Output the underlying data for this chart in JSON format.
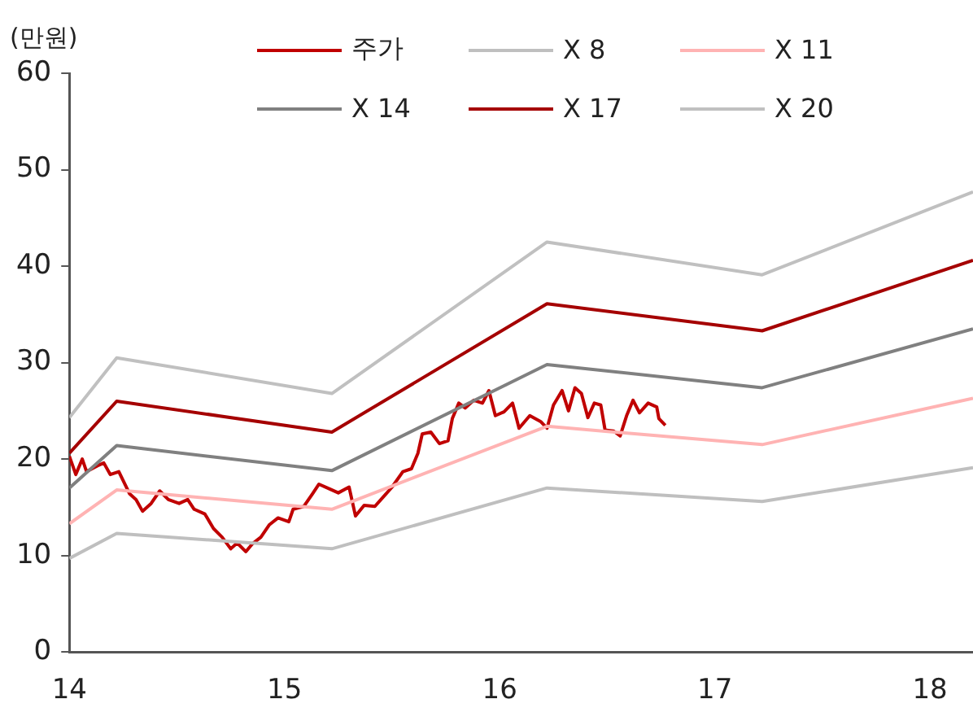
{
  "chart_data": {
    "type": "line",
    "ylabel": "(만원)",
    "xlim": [
      14,
      18.2
    ],
    "xticks": [
      14,
      15,
      16,
      17,
      18
    ],
    "ylim": [
      0,
      60
    ],
    "yticks": [
      0,
      10,
      20,
      30,
      40,
      50,
      60
    ],
    "grid": false,
    "legend": "top",
    "marker": "none",
    "line_style": "solid",
    "series": [
      {
        "name": "주가",
        "color": "#c00000",
        "x": [
          14.0,
          14.03,
          14.06,
          14.08,
          14.13,
          14.16,
          14.19,
          14.23,
          14.28,
          14.31,
          14.34,
          14.38,
          14.42,
          14.46,
          14.51,
          14.55,
          14.58,
          14.63,
          14.67,
          14.71,
          14.75,
          14.78,
          14.82,
          14.85,
          14.89,
          14.93,
          14.97,
          15.02,
          15.04,
          15.09,
          15.13,
          15.16,
          15.21,
          15.25,
          15.3,
          15.33,
          15.37,
          15.42,
          15.46,
          15.5,
          15.55,
          15.59,
          15.62,
          15.64,
          15.68,
          15.72,
          15.76,
          15.78,
          15.81,
          15.84,
          15.88,
          15.92,
          15.95,
          15.98,
          16.02,
          16.06,
          16.09,
          16.14,
          16.19,
          16.22,
          16.25,
          16.29,
          16.32,
          16.35,
          16.38,
          16.41,
          16.44,
          16.47,
          16.49,
          16.53,
          16.56,
          16.59,
          16.62,
          16.65,
          16.69,
          16.73,
          16.74,
          16.77
        ],
        "values": [
          20.3,
          18.4,
          20.0,
          18.7,
          19.3,
          19.6,
          18.4,
          18.7,
          16.4,
          15.8,
          14.6,
          15.4,
          16.7,
          15.8,
          15.4,
          15.8,
          14.8,
          14.3,
          12.8,
          11.9,
          10.7,
          11.3,
          10.4,
          11.2,
          11.9,
          13.2,
          13.9,
          13.5,
          14.8,
          15.1,
          16.4,
          17.4,
          16.9,
          16.5,
          17.1,
          14.1,
          15.2,
          15.1,
          16.1,
          17.1,
          18.7,
          19.0,
          20.6,
          22.6,
          22.8,
          21.6,
          21.9,
          24.2,
          25.8,
          25.3,
          26.1,
          25.8,
          27.1,
          24.5,
          24.9,
          25.8,
          23.2,
          24.5,
          23.9,
          23.2,
          25.6,
          27.1,
          25.0,
          27.4,
          26.8,
          24.3,
          25.8,
          25.6,
          23.0,
          22.9,
          22.4,
          24.5,
          26.1,
          24.8,
          25.8,
          25.4,
          24.2,
          23.5
        ]
      },
      {
        "name": "X 8",
        "color": "#bfbfbf",
        "x": [
          14,
          14.22,
          15.22,
          16.22,
          17.22,
          18.2
        ],
        "values": [
          9.7,
          12.3,
          10.7,
          17.0,
          15.6,
          19.1
        ]
      },
      {
        "name": "X 11",
        "color": "#ffb3b3",
        "x": [
          14,
          14.22,
          15.22,
          16.22,
          17.22,
          18.2
        ],
        "values": [
          13.3,
          16.8,
          14.8,
          23.4,
          21.5,
          26.3
        ]
      },
      {
        "name": "X 14",
        "color": "#808080",
        "x": [
          14,
          14.22,
          15.22,
          16.22,
          17.22,
          18.2
        ],
        "values": [
          17.0,
          21.4,
          18.8,
          29.8,
          27.4,
          33.5
        ]
      },
      {
        "name": "X 17",
        "color": "#a50000",
        "x": [
          14,
          14.22,
          15.22,
          16.22,
          17.22,
          18.2
        ],
        "values": [
          20.6,
          26.0,
          22.8,
          36.1,
          33.3,
          40.6
        ]
      },
      {
        "name": "X 20",
        "color": "#c0c0c0",
        "x": [
          14,
          14.22,
          15.22,
          16.22,
          17.22,
          18.2
        ],
        "values": [
          24.3,
          30.5,
          26.8,
          42.5,
          39.1,
          47.7
        ]
      }
    ]
  }
}
